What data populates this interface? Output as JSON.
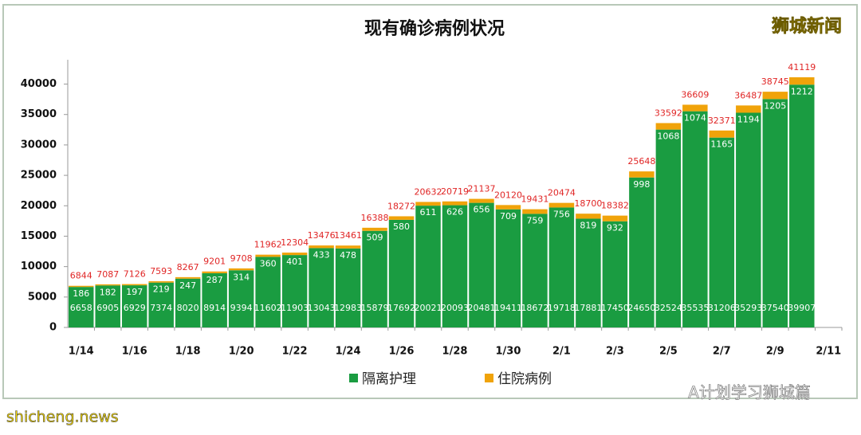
{
  "chart_data": {
    "type": "stacked_bar",
    "title": "现有确诊病例状况",
    "watermark": "狮城新闻",
    "source": "A计划学习狮城篇",
    "site": "shicheng.news",
    "categories": [
      "1/14",
      null,
      "1/16",
      null,
      "1/18",
      null,
      "1/20",
      null,
      "1/22",
      null,
      "1/24",
      null,
      "1/26",
      null,
      "1/28",
      null,
      "1/30",
      null,
      "2/1",
      null,
      "2/3",
      null,
      "2/5",
      null,
      "2/7",
      null,
      "2/9",
      null,
      "2/11"
    ],
    "series": [
      {
        "name": "隔离护理",
        "color": "#1a9c41",
        "values": [
          6658,
          6905,
          6929,
          7374,
          8020,
          8914,
          9394,
          11602,
          11903,
          13043,
          12983,
          15879,
          17692,
          20021,
          20093,
          20481,
          19411,
          18672,
          19718,
          17881,
          17450,
          24650,
          32524,
          35535,
          31206,
          35293,
          37540,
          39907,
          null
        ]
      },
      {
        "name": "住院病例",
        "color": "#f0a30a",
        "values": [
          186,
          182,
          197,
          219,
          247,
          287,
          314,
          360,
          401,
          433,
          478,
          509,
          580,
          611,
          626,
          656,
          709,
          759,
          756,
          819,
          932,
          998,
          1068,
          1074,
          1165,
          1194,
          1205,
          1212,
          null
        ]
      }
    ],
    "total_labels": [
      6844,
      7087,
      7126,
      7593,
      8267,
      9201,
      9708,
      11962,
      12304,
      13476,
      13461,
      16388,
      18272,
      20632,
      20719,
      21137,
      20120,
      19431,
      20474,
      18700,
      18382,
      25648,
      33592,
      36609,
      32371,
      36487,
      38745,
      41119,
      null
    ],
    "ylim": [
      0,
      44000
    ],
    "yticks": [
      0,
      5000,
      10000,
      15000,
      20000,
      25000,
      30000,
      35000,
      40000
    ],
    "grid": false,
    "legend": "bottom"
  }
}
